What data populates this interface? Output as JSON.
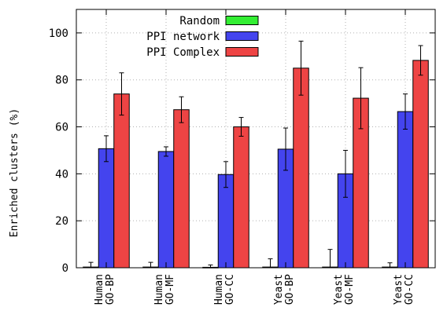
{
  "chart_data": {
    "type": "bar",
    "ylabel": "Enriched clusters (%)",
    "ylim": [
      0,
      110
    ],
    "yticks": [
      0,
      20,
      40,
      60,
      80,
      100
    ],
    "grid": true,
    "legend_position": "top-left",
    "categories": [
      [
        "Human",
        "GO-BP"
      ],
      [
        "Human",
        "GO-MF"
      ],
      [
        "Human",
        "GO-CC"
      ],
      [
        "Yeast",
        "GO-BP"
      ],
      [
        "Yeast",
        "GO-MF"
      ],
      [
        "Yeast",
        "GO-CC"
      ]
    ],
    "series": [
      {
        "name": "Random",
        "color": "#33ee33",
        "values": [
          0.3,
          0.3,
          0.2,
          0.3,
          0.3,
          0.3
        ],
        "errors": [
          2.0,
          2.0,
          1.0,
          3.5,
          7.5,
          1.8
        ]
      },
      {
        "name": "PPI network",
        "color": "#4444ee",
        "values": [
          50.7,
          49.5,
          39.7,
          50.5,
          40.0,
          66.5
        ],
        "errors": [
          5.5,
          2.0,
          5.5,
          9.0,
          10.0,
          7.5
        ]
      },
      {
        "name": "PPI Complex",
        "color": "#ee4444",
        "values": [
          74.0,
          67.3,
          60.0,
          85.0,
          72.2,
          88.3
        ],
        "errors": [
          9.0,
          5.5,
          4.0,
          11.5,
          13.0,
          6.3
        ]
      }
    ]
  }
}
